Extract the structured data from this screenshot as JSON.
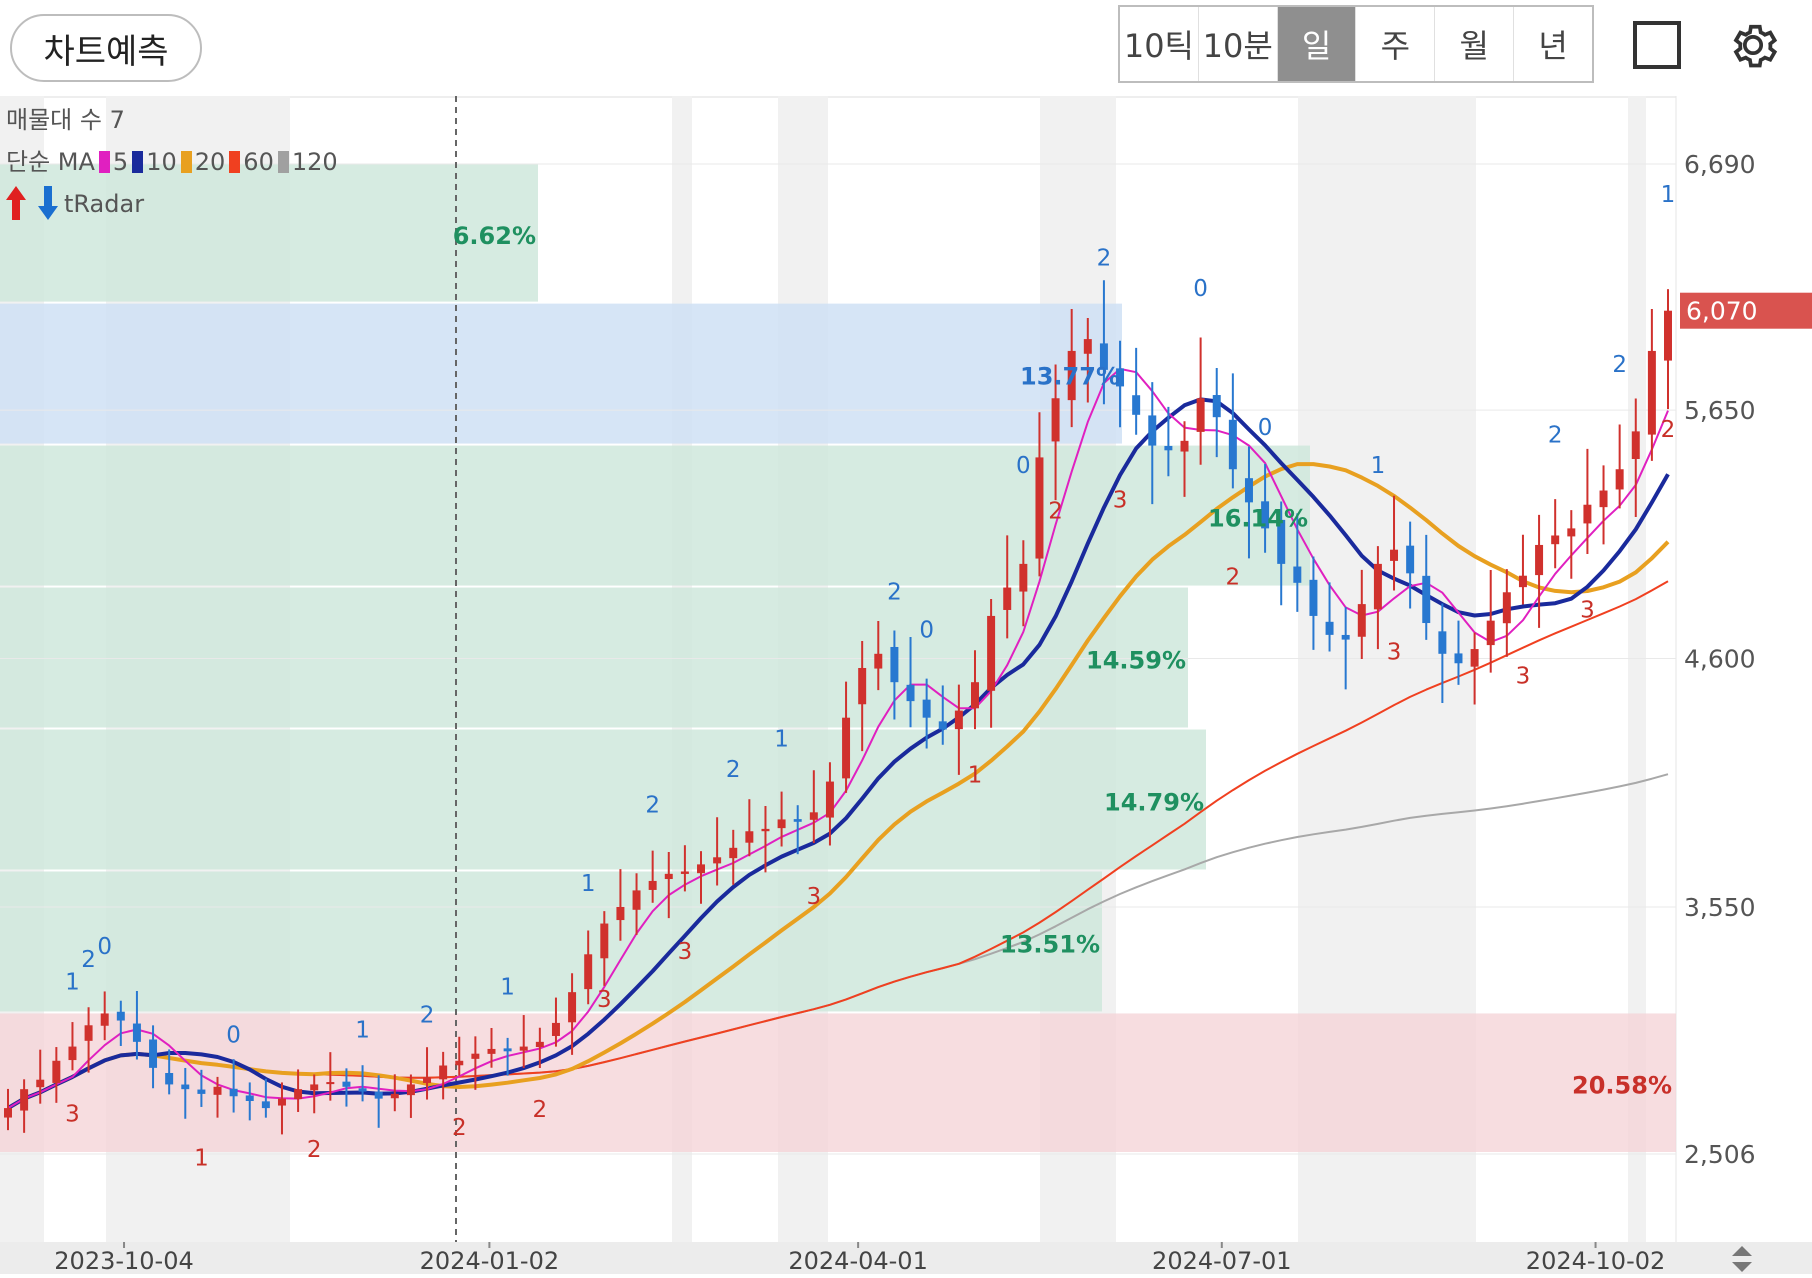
{
  "toolbar": {
    "predict_label": "차트예측",
    "periods": [
      "10틱",
      "10분",
      "일",
      "주",
      "월",
      "년"
    ],
    "active_period": "일"
  },
  "legend": {
    "volume_profile": "매물대 수 7",
    "ma_label": "단순 MA",
    "ma_periods": [
      {
        "label": "5",
        "color": "#e020c0"
      },
      {
        "label": "10",
        "color": "#1a2a9c"
      },
      {
        "label": "20",
        "color": "#e8a020"
      },
      {
        "label": "60",
        "color": "#f04020"
      },
      {
        "label": "120",
        "color": "#a0a0a0"
      }
    ],
    "indicator": "tRadar"
  },
  "chart_data": {
    "type": "candlestick",
    "y_ticks": [
      "6,690",
      "5,650",
      "4,600",
      "3,550",
      "2,506"
    ],
    "ylim": [
      2506,
      6690
    ],
    "x_ticks": [
      "2023-10-04",
      "2024-01-02",
      "2024-04-01",
      "2024-07-01",
      "2024-10-02"
    ],
    "current_price": "6,070",
    "colors": {
      "up": "#d0312d",
      "down": "#2878d0",
      "band_green": "#cfe8dc",
      "band_blue": "#cfe0f5",
      "band_red": "#f5d5d8",
      "price_tag": "#d9534f"
    },
    "close_series": [
      2700,
      2780,
      2820,
      2900,
      2960,
      3050,
      3100,
      3070,
      2980,
      2870,
      2800,
      2780,
      2760,
      2790,
      2750,
      2730,
      2700,
      2740,
      2780,
      2800,
      2810,
      2790,
      2770,
      2740,
      2760,
      2800,
      2830,
      2880,
      2900,
      2930,
      2950,
      2940,
      2960,
      2980,
      3060,
      3190,
      3350,
      3480,
      3550,
      3620,
      3660,
      3690,
      3700,
      3730,
      3760,
      3800,
      3870,
      3880,
      3920,
      3910,
      3950,
      4080,
      4350,
      4560,
      4620,
      4500,
      4420,
      4350,
      4300,
      4380,
      4500,
      4780,
      4900,
      5000,
      5450,
      5700,
      5900,
      5950,
      5820,
      5750,
      5630,
      5500,
      5480,
      5520,
      5700,
      5620,
      5400,
      5260,
      5150,
      5000,
      4920,
      4780,
      4700,
      4680,
      4830,
      5000,
      5060,
      4960,
      4750,
      4620,
      4580,
      4640,
      4760,
      4880,
      4950,
      5080,
      5120,
      5150,
      5250,
      5310,
      5400,
      5560,
      5900,
      6070
    ],
    "volume_profile_bands": [
      {
        "from": 6100,
        "to": 6690,
        "pct": "6.62%",
        "pct_value": 6.62
      },
      {
        "from": 5500,
        "to": 6100,
        "pct": "13.77%",
        "pct_value": 13.77
      },
      {
        "from": 4900,
        "to": 5500,
        "pct": "16.14%",
        "pct_value": 16.14
      },
      {
        "from": 4300,
        "to": 4900,
        "pct": "14.59%",
        "pct_value": 14.59
      },
      {
        "from": 3700,
        "to": 4300,
        "pct": "14.79%",
        "pct_value": 14.79
      },
      {
        "from": 3100,
        "to": 3700,
        "pct": "13.51%",
        "pct_value": 13.51
      },
      {
        "from": 2506,
        "to": 3100,
        "pct": "20.58%",
        "pct_value": 20.58
      }
    ],
    "markers": [
      {
        "i": 4,
        "label": "1",
        "pos": "high"
      },
      {
        "i": 5,
        "label": "2",
        "pos": "high"
      },
      {
        "i": 6,
        "label": "0",
        "pos": "high"
      },
      {
        "i": 4,
        "label": "3",
        "pos": "low"
      },
      {
        "i": 12,
        "label": "1",
        "pos": "low"
      },
      {
        "i": 14,
        "label": "0",
        "pos": "high"
      },
      {
        "i": 19,
        "label": "2",
        "pos": "low"
      },
      {
        "i": 22,
        "label": "1",
        "pos": "high"
      },
      {
        "i": 26,
        "label": "2",
        "pos": "high"
      },
      {
        "i": 28,
        "label": "2",
        "pos": "low"
      },
      {
        "i": 31,
        "label": "1",
        "pos": "high"
      },
      {
        "i": 33,
        "label": "2",
        "pos": "low"
      },
      {
        "i": 36,
        "label": "1",
        "pos": "high"
      },
      {
        "i": 37,
        "label": "3",
        "pos": "low"
      },
      {
        "i": 40,
        "label": "2",
        "pos": "high"
      },
      {
        "i": 42,
        "label": "3",
        "pos": "low"
      },
      {
        "i": 45,
        "label": "2",
        "pos": "high"
      },
      {
        "i": 48,
        "label": "1",
        "pos": "high"
      },
      {
        "i": 50,
        "label": "3",
        "pos": "low"
      },
      {
        "i": 55,
        "label": "2",
        "pos": "high"
      },
      {
        "i": 57,
        "label": "0",
        "pos": "high"
      },
      {
        "i": 60,
        "label": "1",
        "pos": "low"
      },
      {
        "i": 63,
        "label": "0",
        "pos": "high"
      },
      {
        "i": 65,
        "label": "2",
        "pos": "low"
      },
      {
        "i": 68,
        "label": "2",
        "pos": "high"
      },
      {
        "i": 69,
        "label": "3",
        "pos": "low"
      },
      {
        "i": 74,
        "label": "0",
        "pos": "high"
      },
      {
        "i": 76,
        "label": "2",
        "pos": "low"
      },
      {
        "i": 78,
        "label": "0",
        "pos": "high"
      },
      {
        "i": 85,
        "label": "1",
        "pos": "high"
      },
      {
        "i": 86,
        "label": "3",
        "pos": "low"
      },
      {
        "i": 94,
        "label": "3",
        "pos": "low"
      },
      {
        "i": 96,
        "label": "2",
        "pos": "high"
      },
      {
        "i": 98,
        "label": "3",
        "pos": "low"
      },
      {
        "i": 100,
        "label": "2",
        "pos": "high"
      },
      {
        "i": 103,
        "label": "1",
        "pos": "high"
      },
      {
        "i": 103,
        "label": "2",
        "pos": "low"
      }
    ]
  }
}
